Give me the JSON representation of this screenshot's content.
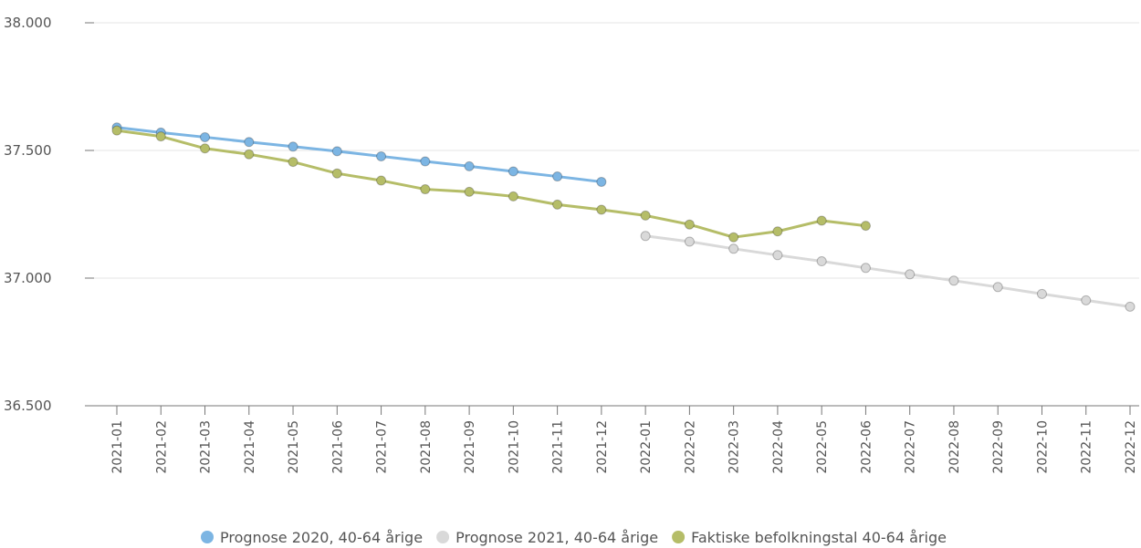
{
  "chart_data": {
    "type": "line",
    "title": "",
    "xlabel": "",
    "ylabel": "",
    "categories": [
      "2021-01",
      "2021-02",
      "2021-03",
      "2021-04",
      "2021-05",
      "2021-06",
      "2021-07",
      "2021-08",
      "2021-09",
      "2021-10",
      "2021-11",
      "2021-12",
      "2022-01",
      "2022-02",
      "2022-03",
      "2022-04",
      "2022-05",
      "2022-06",
      "2022-07",
      "2022-08",
      "2022-09",
      "2022-10",
      "2022-11",
      "2022-12"
    ],
    "ylim": [
      36500,
      38000
    ],
    "yticks": [
      36500,
      37000,
      37500,
      38000
    ],
    "ytick_labels": [
      "36.500",
      "37.000",
      "37.500",
      "38.000"
    ],
    "grid": true,
    "legend_position": "bottom",
    "series": [
      {
        "name": "Prognose 2020, 40-64 årige",
        "color": "#7cb5e3",
        "values": [
          37590,
          37570,
          37552,
          37533,
          37515,
          37497,
          37477,
          37457,
          37438,
          37418,
          37398,
          37377,
          null,
          null,
          null,
          null,
          null,
          null,
          null,
          null,
          null,
          null,
          null,
          null
        ]
      },
      {
        "name": "Prognose 2021, 40-64 årige",
        "color": "#d9d9d9",
        "values": [
          null,
          null,
          null,
          null,
          null,
          null,
          null,
          null,
          null,
          null,
          null,
          null,
          37165,
          37143,
          37115,
          37090,
          37066,
          37040,
          37015,
          36990,
          36965,
          36938,
          36913,
          36888
        ]
      },
      {
        "name": "Faktiske befolkningstal  40-64 årige",
        "color": "#b5bd68",
        "values": [
          37578,
          37555,
          37508,
          37485,
          37455,
          37410,
          37382,
          37348,
          37338,
          37320,
          37288,
          37268,
          37245,
          37210,
          37160,
          37183,
          37225,
          37205,
          null,
          null,
          null,
          null,
          null,
          null
        ]
      }
    ]
  }
}
